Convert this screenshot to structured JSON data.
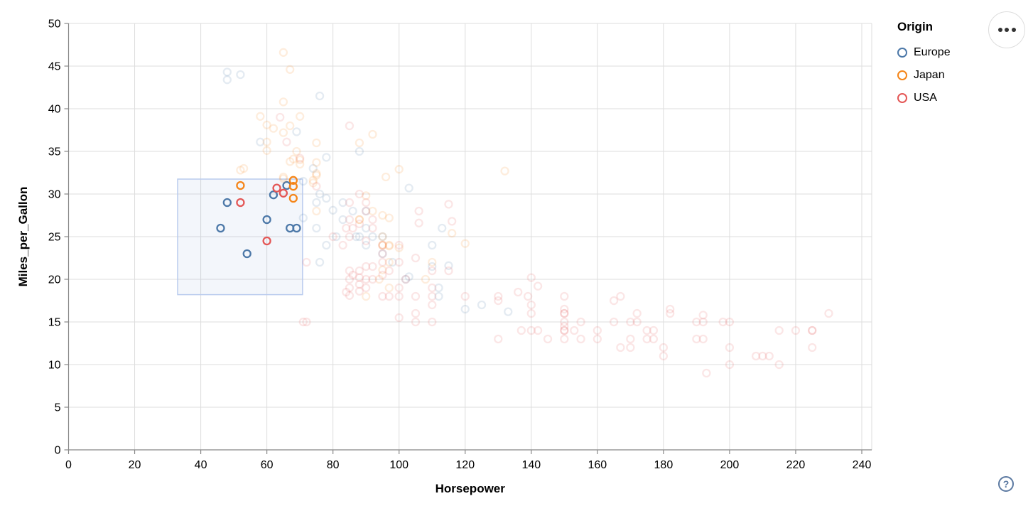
{
  "legend": {
    "title": "Origin",
    "items": [
      {
        "label": "Europe",
        "color": "#4c78a8"
      },
      {
        "label": "Japan",
        "color": "#f58518"
      },
      {
        "label": "USA",
        "color": "#e45756"
      }
    ]
  },
  "menu_button": {
    "icon": "ellipsis-menu"
  },
  "help_button": {
    "glyph": "?"
  },
  "colors": {
    "europe": "#4c78a8",
    "japan": "#f58518",
    "usa": "#e45756",
    "grid": "#ddd",
    "axis_domain": "#888",
    "label": "#000",
    "brush_fill": "rgba(120,150,210,0.09)",
    "brush_stroke": "#b9cbee"
  },
  "chart_data": {
    "type": "scatter",
    "title": "",
    "xlabel": "Horsepower",
    "ylabel": "Miles_per_Gallon",
    "xlim": [
      0,
      240
    ],
    "ylim": [
      0,
      50
    ],
    "x_ticks": [
      0,
      20,
      40,
      60,
      80,
      100,
      120,
      140,
      160,
      180,
      200,
      220,
      240
    ],
    "y_ticks": [
      0,
      5,
      10,
      15,
      20,
      25,
      30,
      35,
      40,
      45,
      50
    ],
    "grid": true,
    "legend_position": "top-right",
    "point_style": {
      "shape": "open-circle",
      "radius": 5,
      "stroke_width": 2.3,
      "unselected_opacity": 0.15,
      "selected_opacity": 1
    },
    "brush_selection": {
      "x": [
        33,
        70.8
      ],
      "y": [
        18.2,
        31.75
      ]
    },
    "series": [
      {
        "name": "Europe",
        "color": "#4c78a8",
        "points": [
          [
            46,
            26,
            1
          ],
          [
            48,
            29,
            1
          ],
          [
            54,
            23,
            1
          ],
          [
            60,
            27,
            1
          ],
          [
            62,
            29.9,
            1
          ],
          [
            66,
            31,
            1
          ],
          [
            67,
            26,
            1
          ],
          [
            69,
            26,
            1
          ],
          [
            48,
            44.3,
            0
          ],
          [
            48,
            43.4,
            0
          ],
          [
            52,
            44,
            0
          ],
          [
            76,
            41.5,
            0
          ],
          [
            69,
            37.3,
            0
          ],
          [
            58,
            36.1,
            0
          ],
          [
            78,
            34.3,
            0
          ],
          [
            74,
            33,
            0
          ],
          [
            71,
            31.5,
            0
          ],
          [
            103,
            30.7,
            0
          ],
          [
            80,
            28.1,
            0
          ],
          [
            76,
            30,
            0
          ],
          [
            90,
            28,
            0
          ],
          [
            83,
            29,
            0
          ],
          [
            78,
            29.5,
            0
          ],
          [
            75,
            29,
            0
          ],
          [
            83,
            27,
            0
          ],
          [
            71,
            27.2,
            0
          ],
          [
            87,
            25,
            0
          ],
          [
            88,
            25,
            0
          ],
          [
            90,
            24,
            0
          ],
          [
            95,
            25,
            0
          ],
          [
            95,
            23,
            0
          ],
          [
            113,
            26,
            0
          ],
          [
            92,
            25,
            0
          ],
          [
            86,
            28,
            0
          ],
          [
            81,
            25,
            0
          ],
          [
            78,
            24,
            0
          ],
          [
            75,
            26,
            0
          ],
          [
            90,
            26,
            0
          ],
          [
            98,
            22,
            0
          ],
          [
            102,
            20,
            0
          ],
          [
            110,
            24,
            0
          ],
          [
            115,
            21.6,
            0
          ],
          [
            110,
            21.5,
            0
          ],
          [
            103,
            20.3,
            0
          ],
          [
            112,
            19,
            0
          ],
          [
            112,
            18,
            0
          ],
          [
            76,
            22,
            0
          ],
          [
            120,
            16.5,
            0
          ],
          [
            125,
            17,
            0
          ],
          [
            133,
            16.2,
            0
          ],
          [
            88,
            35,
            0
          ]
        ]
      },
      {
        "name": "Japan",
        "color": "#f58518",
        "points": [
          [
            52,
            31,
            1
          ],
          [
            68,
            31.6,
            1
          ],
          [
            68,
            30.9,
            1
          ],
          [
            68,
            29.5,
            1
          ],
          [
            65,
            46.6,
            0
          ],
          [
            67,
            44.6,
            0
          ],
          [
            65,
            40.8,
            0
          ],
          [
            58,
            39.1,
            0
          ],
          [
            60,
            38.1,
            0
          ],
          [
            62,
            37.7,
            0
          ],
          [
            65,
            37.2,
            0
          ],
          [
            67,
            38,
            0
          ],
          [
            70,
            39.1,
            0
          ],
          [
            60,
            36.1,
            0
          ],
          [
            88,
            36,
            0
          ],
          [
            75,
            36,
            0
          ],
          [
            92,
            37,
            0
          ],
          [
            60,
            35.1,
            0
          ],
          [
            70,
            33.5,
            0
          ],
          [
            67,
            33.8,
            0
          ],
          [
            68,
            34.1,
            0
          ],
          [
            70,
            34,
            0
          ],
          [
            52,
            32.8,
            0
          ],
          [
            65,
            32,
            0
          ],
          [
            65,
            31.8,
            0
          ],
          [
            75,
            32.2,
            0
          ],
          [
            75,
            32.4,
            0
          ],
          [
            96,
            32,
            0
          ],
          [
            100,
            32.9,
            0
          ],
          [
            132,
            32.7,
            0
          ],
          [
            74,
            31.3,
            0
          ],
          [
            74,
            31.6,
            0
          ],
          [
            75,
            33.7,
            0
          ],
          [
            90,
            29.8,
            0
          ],
          [
            95,
            27.5,
            0
          ],
          [
            97,
            27.2,
            0
          ],
          [
            88,
            27,
            0
          ],
          [
            88,
            27,
            0
          ],
          [
            92,
            28,
            0
          ],
          [
            75,
            28,
            0
          ],
          [
            53,
            33,
            0
          ],
          [
            69,
            35,
            0
          ],
          [
            95,
            25,
            0
          ],
          [
            95,
            24,
            0
          ],
          [
            95,
            24,
            0
          ],
          [
            97,
            24,
            0
          ],
          [
            97,
            22,
            0
          ],
          [
            94,
            20,
            0
          ],
          [
            108,
            20,
            0
          ],
          [
            95,
            21.1,
            0
          ],
          [
            97,
            23.9,
            0
          ],
          [
            116,
            25.4,
            0
          ],
          [
            120,
            24.2,
            0
          ],
          [
            100,
            23.7,
            0
          ],
          [
            110,
            22,
            0
          ],
          [
            97,
            19,
            0
          ],
          [
            90,
            18,
            0
          ]
        ]
      },
      {
        "name": "USA",
        "color": "#e45756",
        "points": [
          [
            52,
            29,
            1
          ],
          [
            60,
            24.5,
            1
          ],
          [
            63,
            30.7,
            1
          ],
          [
            65,
            30.1,
            1
          ],
          [
            193,
            9,
            0
          ],
          [
            215,
            10,
            0
          ],
          [
            200,
            10,
            0
          ],
          [
            210,
            11,
            0
          ],
          [
            212,
            11,
            0
          ],
          [
            208,
            11,
            0
          ],
          [
            180,
            11,
            0
          ],
          [
            170,
            12,
            0
          ],
          [
            180,
            12,
            0
          ],
          [
            167,
            12,
            0
          ],
          [
            225,
            12,
            0
          ],
          [
            150,
            13,
            0
          ],
          [
            155,
            13,
            0
          ],
          [
            160,
            13,
            0
          ],
          [
            170,
            13,
            0
          ],
          [
            175,
            13,
            0
          ],
          [
            175,
            14,
            0
          ],
          [
            153,
            14,
            0
          ],
          [
            145,
            13,
            0
          ],
          [
            137,
            14,
            0
          ],
          [
            225,
            14,
            0
          ],
          [
            225,
            14,
            0
          ],
          [
            220,
            14,
            0
          ],
          [
            130,
            13,
            0
          ],
          [
            190,
            13,
            0
          ],
          [
            150,
            14,
            0
          ],
          [
            150,
            14,
            0
          ],
          [
            150,
            14.5,
            0
          ],
          [
            150,
            15,
            0
          ],
          [
            150,
            16,
            0
          ],
          [
            150,
            16,
            0
          ],
          [
            140,
            14,
            0
          ],
          [
            142,
            14,
            0
          ],
          [
            155,
            15,
            0
          ],
          [
            140,
            16,
            0
          ],
          [
            165,
            15,
            0
          ],
          [
            198,
            15,
            0
          ],
          [
            190,
            15,
            0
          ],
          [
            170,
            15,
            0
          ],
          [
            160,
            14,
            0
          ],
          [
            215,
            14,
            0
          ],
          [
            230,
            16,
            0
          ],
          [
            192,
            15.8,
            0
          ],
          [
            192,
            15,
            0
          ],
          [
            192,
            13,
            0
          ],
          [
            200,
            15,
            0
          ],
          [
            200,
            12,
            0
          ],
          [
            182,
            16.5,
            0
          ],
          [
            182,
            16,
            0
          ],
          [
            177,
            14,
            0
          ],
          [
            177,
            13,
            0
          ],
          [
            172,
            16,
            0
          ],
          [
            172,
            15,
            0
          ],
          [
            167,
            18,
            0
          ],
          [
            165,
            17.5,
            0
          ],
          [
            130,
            18,
            0
          ],
          [
            130,
            17.5,
            0
          ],
          [
            136,
            18.5,
            0
          ],
          [
            139,
            18,
            0
          ],
          [
            140,
            20.2,
            0
          ],
          [
            142,
            19.2,
            0
          ],
          [
            140,
            17,
            0
          ],
          [
            150,
            18,
            0
          ],
          [
            150,
            16.5,
            0
          ],
          [
            105,
            16,
            0
          ],
          [
            105,
            15,
            0
          ],
          [
            100,
            15.5,
            0
          ],
          [
            110,
            15,
            0
          ],
          [
            100,
            19,
            0
          ],
          [
            100,
            18,
            0
          ],
          [
            105,
            18,
            0
          ],
          [
            110,
            18,
            0
          ],
          [
            110,
            19,
            0
          ],
          [
            102,
            20,
            0
          ],
          [
            110,
            21,
            0
          ],
          [
            120,
            18,
            0
          ],
          [
            115,
            21,
            0
          ],
          [
            110,
            17,
            0
          ],
          [
            97,
            18,
            0
          ],
          [
            95,
            18,
            0
          ],
          [
            85,
            18.1,
            0
          ],
          [
            84,
            18.5,
            0
          ],
          [
            85,
            19,
            0
          ],
          [
            85,
            20,
            0
          ],
          [
            86,
            20.5,
            0
          ],
          [
            88,
            18.6,
            0
          ],
          [
            88,
            19.4,
            0
          ],
          [
            88,
            20.2,
            0
          ],
          [
            88,
            21,
            0
          ],
          [
            90,
            19,
            0
          ],
          [
            90,
            20,
            0
          ],
          [
            90,
            21.5,
            0
          ],
          [
            92,
            20,
            0
          ],
          [
            92,
            21.5,
            0
          ],
          [
            97,
            21,
            0
          ],
          [
            95,
            22,
            0
          ],
          [
            95,
            23,
            0
          ],
          [
            95,
            24,
            0
          ],
          [
            85,
            21,
            0
          ],
          [
            72,
            22,
            0
          ],
          [
            71,
            15,
            0
          ],
          [
            72,
            15,
            0
          ],
          [
            80,
            25,
            0
          ],
          [
            83,
            24,
            0
          ],
          [
            85,
            25,
            0
          ],
          [
            84,
            26,
            0
          ],
          [
            86,
            26,
            0
          ],
          [
            90,
            24.5,
            0
          ],
          [
            85,
            27,
            0
          ],
          [
            88,
            26.5,
            0
          ],
          [
            92,
            27,
            0
          ],
          [
            85,
            29,
            0
          ],
          [
            90,
            28,
            0
          ],
          [
            92,
            26,
            0
          ],
          [
            100,
            22,
            0
          ],
          [
            100,
            24,
            0
          ],
          [
            105,
            22.5,
            0
          ],
          [
            95,
            20.5,
            0
          ],
          [
            90,
            29,
            0
          ],
          [
            88,
            30,
            0
          ],
          [
            75,
            30.9,
            0
          ],
          [
            70,
            34.2,
            0
          ],
          [
            66,
            36.1,
            0
          ],
          [
            64,
            39,
            0
          ],
          [
            85,
            38,
            0
          ],
          [
            115,
            28.8,
            0
          ],
          [
            106,
            28,
            0
          ],
          [
            106,
            26.6,
            0
          ],
          [
            116,
            26.8,
            0
          ]
        ]
      }
    ]
  }
}
